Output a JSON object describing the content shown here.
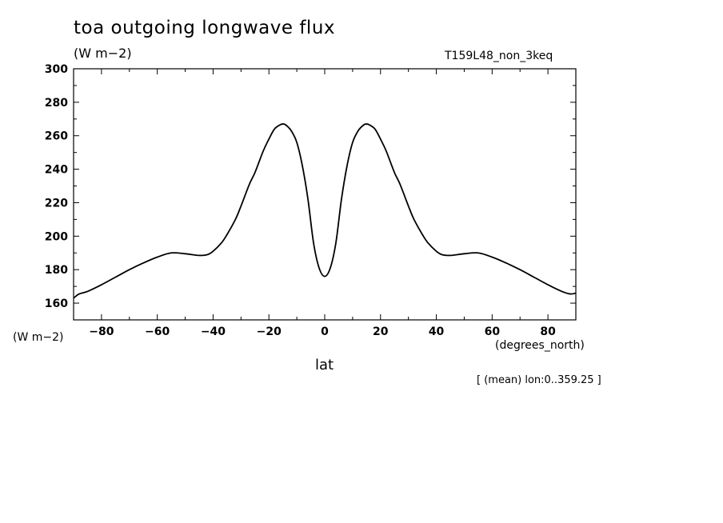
{
  "title": "toa outgoing longwave flux",
  "units_top": "(W m−2)",
  "run_label": "T159L48_non_3keq",
  "units_left": "(W m−2)",
  "colors": {
    "line": "#000000",
    "background": "#ffffff"
  },
  "chart_data": {
    "type": "line",
    "title": "toa outgoing longwave flux",
    "xlabel": "lat",
    "x_units": "(degrees_north)",
    "ylabel": "(W m−2)",
    "note": "[ (mean) lon:0..359.25 ]",
    "xlim": [
      -90,
      90
    ],
    "ylim": [
      150,
      300
    ],
    "x_ticks": [
      -80,
      -60,
      -40,
      -20,
      0,
      20,
      40,
      60,
      80
    ],
    "x_tick_labels": [
      "−80",
      "−60",
      "−40",
      "−20",
      "0",
      "20",
      "40",
      "60",
      "80"
    ],
    "y_ticks": [
      160,
      180,
      200,
      220,
      240,
      260,
      280,
      300
    ],
    "y_tick_labels": [
      "160",
      "180",
      "200",
      "220",
      "240",
      "260",
      "280",
      "300"
    ],
    "grid": false,
    "series": [
      {
        "x": [
          -90,
          -88,
          -85,
          -80,
          -75,
          -70,
          -65,
          -60,
          -55,
          -50,
          -45,
          -42,
          -40,
          -37,
          -35,
          -32,
          -30,
          -27,
          -25,
          -22,
          -20,
          -18,
          -16,
          -15,
          -14,
          -12,
          -10,
          -8,
          -6,
          -4,
          -2,
          0,
          2,
          4,
          6,
          8,
          10,
          12,
          14,
          15,
          16,
          18,
          20,
          22,
          25,
          27,
          30,
          32,
          35,
          37,
          40,
          42,
          45,
          50,
          55,
          60,
          65,
          70,
          75,
          80,
          85,
          88,
          90
        ],
        "values": [
          163,
          165.5,
          167,
          171,
          175.5,
          180,
          184,
          187.5,
          190,
          189.5,
          188.5,
          189,
          191,
          196,
          201,
          210,
          218,
          231,
          238,
          251,
          258,
          264,
          266.5,
          267,
          266.5,
          263,
          256,
          242,
          222,
          196,
          181,
          176,
          181,
          196,
          222,
          242,
          256,
          263,
          266.5,
          267,
          266.5,
          264,
          258,
          251,
          238,
          231,
          218,
          210,
          201,
          196,
          191,
          189,
          188.5,
          189.5,
          190,
          187.5,
          184,
          180,
          175.5,
          171,
          167,
          165.5,
          166
        ]
      }
    ]
  }
}
